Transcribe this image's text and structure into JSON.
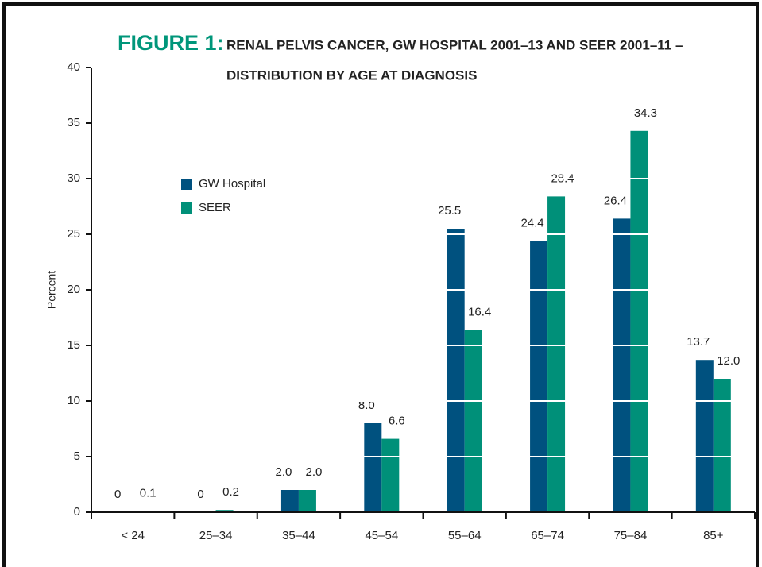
{
  "chart_data": {
    "type": "bar",
    "title_label": "FIGURE 1:",
    "title": "RENAL PELVIS CANCER, GW HOSPITAL 2001–13 AND SEER 2001–11 –",
    "subtitle": "DISTRIBUTION BY AGE AT DIAGNOSIS",
    "y_label": "Percent",
    "categories": [
      "< 24",
      "25–34",
      "35–44",
      "45–54",
      "55–64",
      "65–74",
      "75–84",
      "85+"
    ],
    "series": [
      {
        "name": "GW Hospital",
        "color": "#00517f",
        "values": [
          0,
          0,
          2,
          8,
          25.5,
          24.4,
          26.4,
          13.7
        ],
        "value_labels": [
          "0",
          "0",
          "2.0",
          "8.0",
          "25.5",
          "24.4",
          "26.4",
          "13.7"
        ]
      },
      {
        "name": "SEER",
        "color": "#009079",
        "values": [
          0.1,
          0.2,
          2,
          6.6,
          16.4,
          28.4,
          34.3,
          12
        ],
        "value_labels": [
          "0.1",
          "0.2",
          "2.0",
          "6.6",
          "16.4",
          "28.4",
          "34.3",
          "12.0"
        ]
      }
    ],
    "ylim": [
      0,
      40
    ],
    "yticks": [
      0,
      5,
      10,
      15,
      20,
      25,
      30,
      35,
      40
    ],
    "grid": true,
    "grid_color": "#ffffff",
    "title_color": "#00967a"
  }
}
